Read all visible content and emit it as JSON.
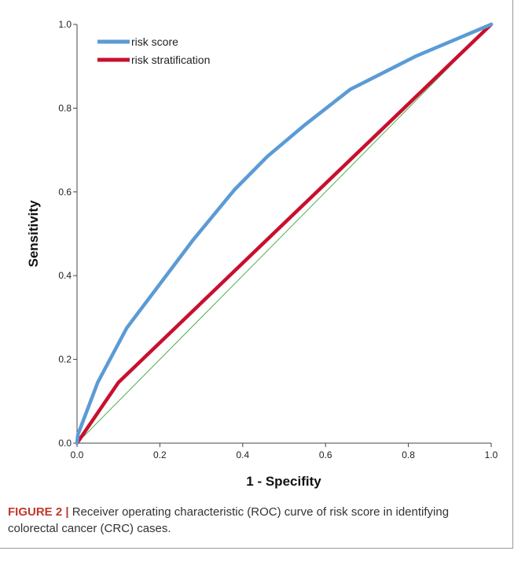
{
  "figure": {
    "label": "FIGURE 2 |",
    "caption": " Receiver operating characteristic (ROC) curve of risk score in identifying colorectal cancer (CRC) cases."
  },
  "chart_data": {
    "type": "line",
    "title": "",
    "xlabel": "1 - Specifity",
    "ylabel": "Sensitivity",
    "xlim": [
      0,
      1
    ],
    "ylim": [
      0,
      1
    ],
    "xticks": [
      "0.0",
      "0.2",
      "0.4",
      "0.6",
      "0.8",
      "1.0"
    ],
    "yticks": [
      "0.0",
      "0.2",
      "0.4",
      "0.6",
      "0.8",
      "1.0"
    ],
    "grid": false,
    "legend_position": "top-left",
    "reference_line": {
      "x": [
        0,
        1
      ],
      "y": [
        0,
        1
      ],
      "color": "#4caf50"
    },
    "series": [
      {
        "name": "risk score",
        "color": "#5b9bd5",
        "x": [
          0,
          0.002,
          0.05,
          0.12,
          0.2,
          0.28,
          0.38,
          0.46,
          0.55,
          0.66,
          0.82,
          1.0
        ],
        "y": [
          0,
          0.02,
          0.145,
          0.275,
          0.38,
          0.485,
          0.605,
          0.685,
          0.76,
          0.845,
          0.925,
          1.0
        ]
      },
      {
        "name": "risk stratification",
        "color": "#c8102e",
        "x": [
          0,
          0.1,
          1.0
        ],
        "y": [
          0,
          0.145,
          1.0
        ]
      }
    ]
  }
}
